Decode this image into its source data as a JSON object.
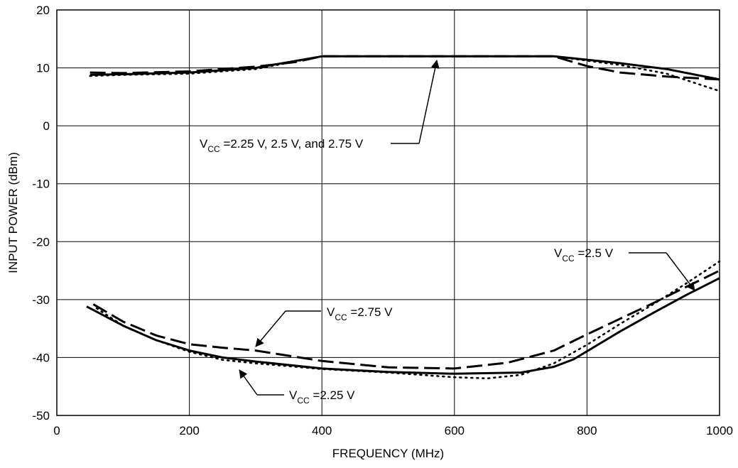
{
  "chart_data": {
    "type": "line",
    "title": "",
    "xlabel": "FREQUENCY (MHz)",
    "ylabel": "INPUT POWER (dBm)",
    "xlim": [
      0,
      1000
    ],
    "ylim": [
      -50,
      20
    ],
    "x_ticks": [
      "0",
      "200",
      "400",
      "600",
      "800",
      "1000"
    ],
    "y_ticks": [
      "-50",
      "-40",
      "-30",
      "-20",
      "-10",
      "0",
      "10",
      "20"
    ],
    "grid": true,
    "legend": "none",
    "series": [
      {
        "style": "solid",
        "group": "upper",
        "x": [
          50,
          100,
          200,
          300,
          400,
          500,
          600,
          750,
          850,
          920,
          1000
        ],
        "y": [
          8.8,
          8.9,
          9.2,
          10.0,
          12.0,
          12.0,
          12.0,
          12.0,
          10.8,
          9.8,
          8.0
        ]
      },
      {
        "style": "dash",
        "group": "upper",
        "x": [
          50,
          100,
          200,
          300,
          360,
          400,
          600,
          750,
          800,
          850,
          920,
          1000
        ],
        "y": [
          9.2,
          9.1,
          9.4,
          10.2,
          11.0,
          12.0,
          12.0,
          12.0,
          10.3,
          9.2,
          8.5,
          8.0
        ]
      },
      {
        "style": "dot",
        "group": "upper",
        "x": [
          50,
          100,
          200,
          300,
          400,
          600,
          750,
          850,
          920,
          1000
        ],
        "y": [
          8.6,
          8.8,
          9.0,
          9.8,
          12.0,
          12.0,
          12.0,
          10.5,
          9.0,
          6.0
        ]
      },
      {
        "name": "VCC = 2.25 V",
        "style": "solid",
        "group": "lower",
        "x": [
          45,
          100,
          150,
          200,
          250,
          300,
          400,
          500,
          600,
          700,
          750,
          780,
          850,
          900,
          950,
          1000
        ],
        "y": [
          -31.2,
          -34.5,
          -37.0,
          -38.8,
          -40.0,
          -40.7,
          -41.9,
          -42.5,
          -42.8,
          -42.6,
          -41.6,
          -40.3,
          -35.5,
          -32.3,
          -29.2,
          -26.3
        ]
      },
      {
        "name": "VCC = 2.75 V",
        "style": "dash",
        "group": "lower",
        "x": [
          55,
          100,
          150,
          200,
          250,
          300,
          400,
          500,
          600,
          680,
          750,
          800,
          850,
          900,
          950,
          1000
        ],
        "y": [
          -30.8,
          -33.8,
          -36.2,
          -37.7,
          -38.3,
          -38.8,
          -40.6,
          -41.7,
          -41.9,
          -40.9,
          -38.8,
          -36.0,
          -33.3,
          -30.6,
          -27.8,
          -25.0
        ]
      },
      {
        "name": "VCC = 2.5 V",
        "style": "dot",
        "group": "lower",
        "x": [
          60,
          100,
          150,
          200,
          250,
          300,
          400,
          500,
          550,
          600,
          650,
          700,
          750,
          800,
          850,
          900,
          950,
          1000
        ],
        "y": [
          -31.5,
          -34.5,
          -37.0,
          -39.0,
          -40.4,
          -41.0,
          -42.0,
          -42.6,
          -43.0,
          -43.4,
          -43.6,
          -43.0,
          -41.0,
          -37.8,
          -34.2,
          -30.8,
          -27.2,
          -23.4
        ]
      }
    ],
    "annotations": [
      {
        "main": "V",
        "sub": "CC",
        "rest": " =2.25 V, 2.5 V, and 2.75 V"
      },
      {
        "main": "V",
        "sub": "CC",
        "rest": " =2.75 V"
      },
      {
        "main": "V",
        "sub": "CC",
        "rest": " =2.5 V"
      },
      {
        "main": "V",
        "sub": "CC",
        "rest": " =2.25 V"
      }
    ]
  }
}
